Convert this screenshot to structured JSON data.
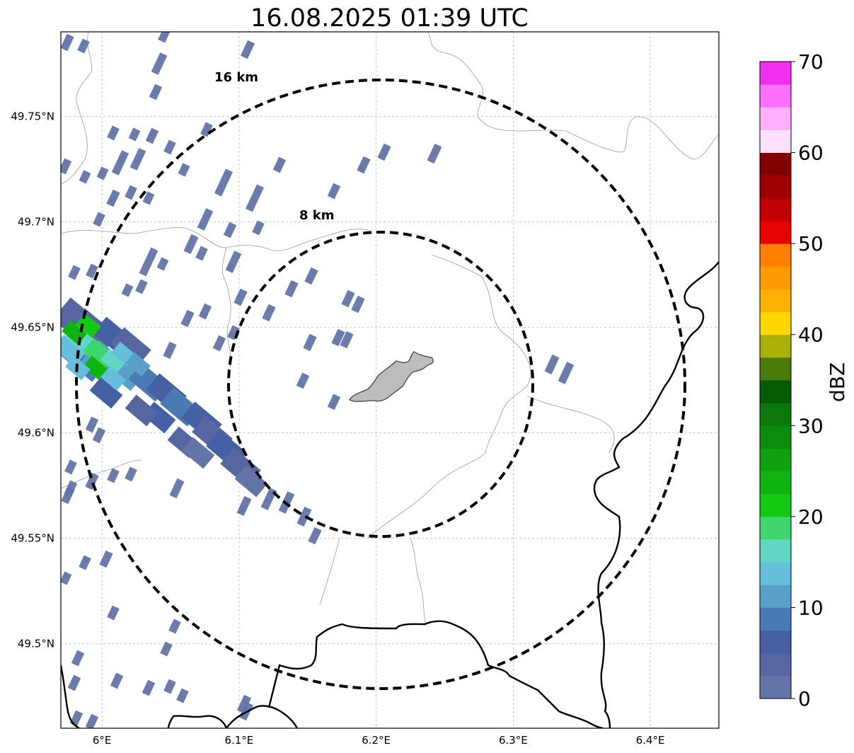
{
  "title": "16.08.2025 01:39 UTC",
  "map": {
    "lon_range": [
      5.97,
      6.45
    ],
    "lat_range": [
      49.46,
      49.79
    ],
    "lat_ticks": [
      {
        "value": 49.75,
        "label": "49.75°N"
      },
      {
        "value": 49.7,
        "label": "49.7°N"
      },
      {
        "value": 49.65,
        "label": "49.65°N"
      },
      {
        "value": 49.6,
        "label": "49.6°N"
      },
      {
        "value": 49.55,
        "label": "49.55°N"
      },
      {
        "value": 49.5,
        "label": "49.5°N"
      }
    ],
    "lon_ticks": [
      {
        "value": 6.0,
        "label": "6°E"
      },
      {
        "value": 6.1,
        "label": "6.1°E"
      },
      {
        "value": 6.2,
        "label": "6.2°E"
      },
      {
        "value": 6.3,
        "label": "6.3°E"
      },
      {
        "value": 6.4,
        "label": "6.4°E"
      }
    ],
    "range_rings": [
      {
        "label": "8 km",
        "radius_km": 8
      },
      {
        "label": "16 km",
        "radius_km": 16
      }
    ],
    "ring_center": {
      "lon": 6.2,
      "lat": 49.623
    },
    "city_label": "",
    "colors": {
      "rings": "#000000",
      "national_border": "#000000",
      "admin_border": "#999999",
      "grid": "#b0b0b0",
      "city_fill": "#bdbdbd"
    }
  },
  "colorbar": {
    "label": "dBZ",
    "min": 0,
    "max": 70,
    "step": 2.5,
    "ticks": [
      0,
      10,
      20,
      30,
      40,
      50,
      60,
      70
    ],
    "colors": [
      "#6374a8",
      "#5566a0",
      "#4660a4",
      "#4a7ab4",
      "#58a0c8",
      "#65bedc",
      "#62d6c4",
      "#3dd66c",
      "#14c814",
      "#10b410",
      "#0ea00e",
      "#0c8c0c",
      "#0a780a",
      "#055c05",
      "#4a7a08",
      "#aab008",
      "#ffd800",
      "#ffb000",
      "#ff9a00",
      "#ff8000",
      "#e60000",
      "#c00000",
      "#a00000",
      "#800000",
      "#ffe0ff",
      "#ffb0ff",
      "#ff70ff",
      "#f030f0"
    ]
  }
}
